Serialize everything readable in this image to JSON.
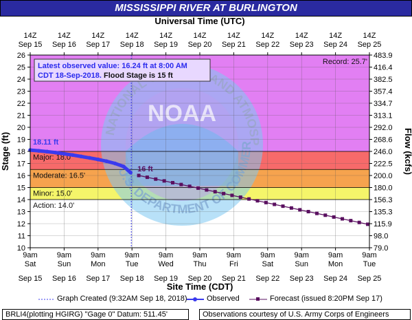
{
  "title": "MISSISSIPPI RIVER AT BURLINGTON",
  "colors": {
    "title_bg": "#2a2aa0",
    "record": "#e27ff3",
    "major": "#f76a6a",
    "moderate": "#f6a34e",
    "minor": "#f5f56a",
    "observed": "#3a3aee",
    "forecast": "#5a1060"
  },
  "chart_data": {
    "type": "line",
    "top_axis_title": "Universal Time (UTC)",
    "top_ticks": [
      {
        "t": "14Z",
        "d": "Sep 15"
      },
      {
        "t": "14Z",
        "d": "Sep 16"
      },
      {
        "t": "14Z",
        "d": "Sep 17"
      },
      {
        "t": "14Z",
        "d": "Sep 18"
      },
      {
        "t": "14Z",
        "d": "Sep 19"
      },
      {
        "t": "14Z",
        "d": "Sep 20"
      },
      {
        "t": "14Z",
        "d": "Sep 21"
      },
      {
        "t": "14Z",
        "d": "Sep 22"
      },
      {
        "t": "14Z",
        "d": "Sep 23"
      },
      {
        "t": "14Z",
        "d": "Sep 24"
      },
      {
        "t": "14Z",
        "d": "Sep 25"
      }
    ],
    "bottom_axis_title": "Site Time (CDT)",
    "bottom_ticks": [
      {
        "t": "9am",
        "w": "Sat",
        "d": "Sep 15"
      },
      {
        "t": "9am",
        "w": "Sun",
        "d": "Sep 16"
      },
      {
        "t": "9am",
        "w": "Mon",
        "d": "Sep 17"
      },
      {
        "t": "9am",
        "w": "Tue",
        "d": "Sep 18"
      },
      {
        "t": "9am",
        "w": "Wed",
        "d": "Sep 19"
      },
      {
        "t": "9am",
        "w": "Thu",
        "d": "Sep 20"
      },
      {
        "t": "9am",
        "w": "Fri",
        "d": "Sep 21"
      },
      {
        "t": "9am",
        "w": "Sat",
        "d": "Sep 22"
      },
      {
        "t": "9am",
        "w": "Sun",
        "d": "Sep 23"
      },
      {
        "t": "9am",
        "w": "Mon",
        "d": "Sep 24"
      },
      {
        "t": "9am",
        "w": "Tue",
        "d": "Sep 25"
      }
    ],
    "ylabel": "Stage (ft)",
    "ylim": [
      10,
      26
    ],
    "yticks": [
      "10",
      "11",
      "12",
      "13",
      "14",
      "15",
      "16",
      "17",
      "18",
      "19",
      "20",
      "21",
      "22",
      "23",
      "24",
      "25",
      "26"
    ],
    "y2label": "Flow (kcfs)",
    "y2ticks": [
      "79.0",
      "98.0",
      "115.9",
      "135.3",
      "156.3",
      "180.0",
      "200.0",
      "222.5",
      "246.0",
      "268.6",
      "292.0",
      "313.1",
      "334.7",
      "357.4",
      "382.5",
      "416.4",
      "483.9"
    ],
    "x_range_days": [
      0,
      10
    ],
    "flood_categories": [
      {
        "name": "Record",
        "label": "Record: 25.7'",
        "from": 18,
        "to": 26
      },
      {
        "name": "Major",
        "label": "Major: 18.0'",
        "from": 16.5,
        "to": 18
      },
      {
        "name": "Moderate",
        "label": "Moderate: 16.5'",
        "from": 15,
        "to": 16.5
      },
      {
        "name": "Minor",
        "label": "Minor: 15.0'",
        "from": 14,
        "to": 15
      },
      {
        "name": "Action",
        "label": "Action: 14.0'",
        "from": 0,
        "to": 14
      }
    ],
    "annotation_box": {
      "line1": "Latest observed value: 16.24 ft at 8:00 AM",
      "line2a": "CDT 18-Sep-2018.",
      "line2b": " Flood Stage is 15 ft"
    },
    "observed_start_label": "18.11 ft",
    "forecast_start_label": "16 ft",
    "graph_created_day": 2.98,
    "series": [
      {
        "name": "Observed",
        "points": [
          [
            0,
            18.11
          ],
          [
            0.25,
            18.05
          ],
          [
            0.5,
            17.98
          ],
          [
            0.75,
            17.9
          ],
          [
            1,
            17.8
          ],
          [
            1.25,
            17.7
          ],
          [
            1.5,
            17.58
          ],
          [
            1.75,
            17.46
          ],
          [
            2,
            17.33
          ],
          [
            2.25,
            17.18
          ],
          [
            2.5,
            17.0
          ],
          [
            2.75,
            16.75
          ],
          [
            2.96,
            16.24
          ]
        ]
      },
      {
        "name": "Forecast",
        "points": [
          [
            3.2,
            16.0
          ],
          [
            3.45,
            15.85
          ],
          [
            3.7,
            15.7
          ],
          [
            3.95,
            15.55
          ],
          [
            4.2,
            15.4
          ],
          [
            4.45,
            15.25
          ],
          [
            4.7,
            15.1
          ],
          [
            4.95,
            14.95
          ],
          [
            5.2,
            14.8
          ],
          [
            5.45,
            14.65
          ],
          [
            5.7,
            14.5
          ],
          [
            5.95,
            14.35
          ],
          [
            6.2,
            14.2
          ],
          [
            6.45,
            14.05
          ],
          [
            6.7,
            13.9
          ],
          [
            6.95,
            13.75
          ],
          [
            7.2,
            13.6
          ],
          [
            7.45,
            13.45
          ],
          [
            7.7,
            13.3
          ],
          [
            7.95,
            13.15
          ],
          [
            8.2,
            13.0
          ],
          [
            8.45,
            12.85
          ],
          [
            8.7,
            12.7
          ],
          [
            8.95,
            12.55
          ],
          [
            9.2,
            12.4
          ],
          [
            9.45,
            12.25
          ],
          [
            9.7,
            12.1
          ],
          [
            9.95,
            11.95
          ]
        ]
      }
    ]
  },
  "legend": {
    "created": "Graph Created (9:32AM Sep 18, 2018)",
    "observed": "Observed",
    "forecast": "Forecast (issued 8:20PM Sep 17)"
  },
  "footer": {
    "left": "BRLI4(plotting HGIRG) \"Gage 0\" Datum: 511.45'",
    "right": "Observations courtesy of U.S. Army Corps of Engineers"
  },
  "watermark": {
    "ring_text": "NATIONAL OCEANIC AND ATMOSPHERIC ADMINISTRATION",
    "lower_text": "U.S. DEPARTMENT OF COMMERCE",
    "logo_text": "NOAA"
  }
}
